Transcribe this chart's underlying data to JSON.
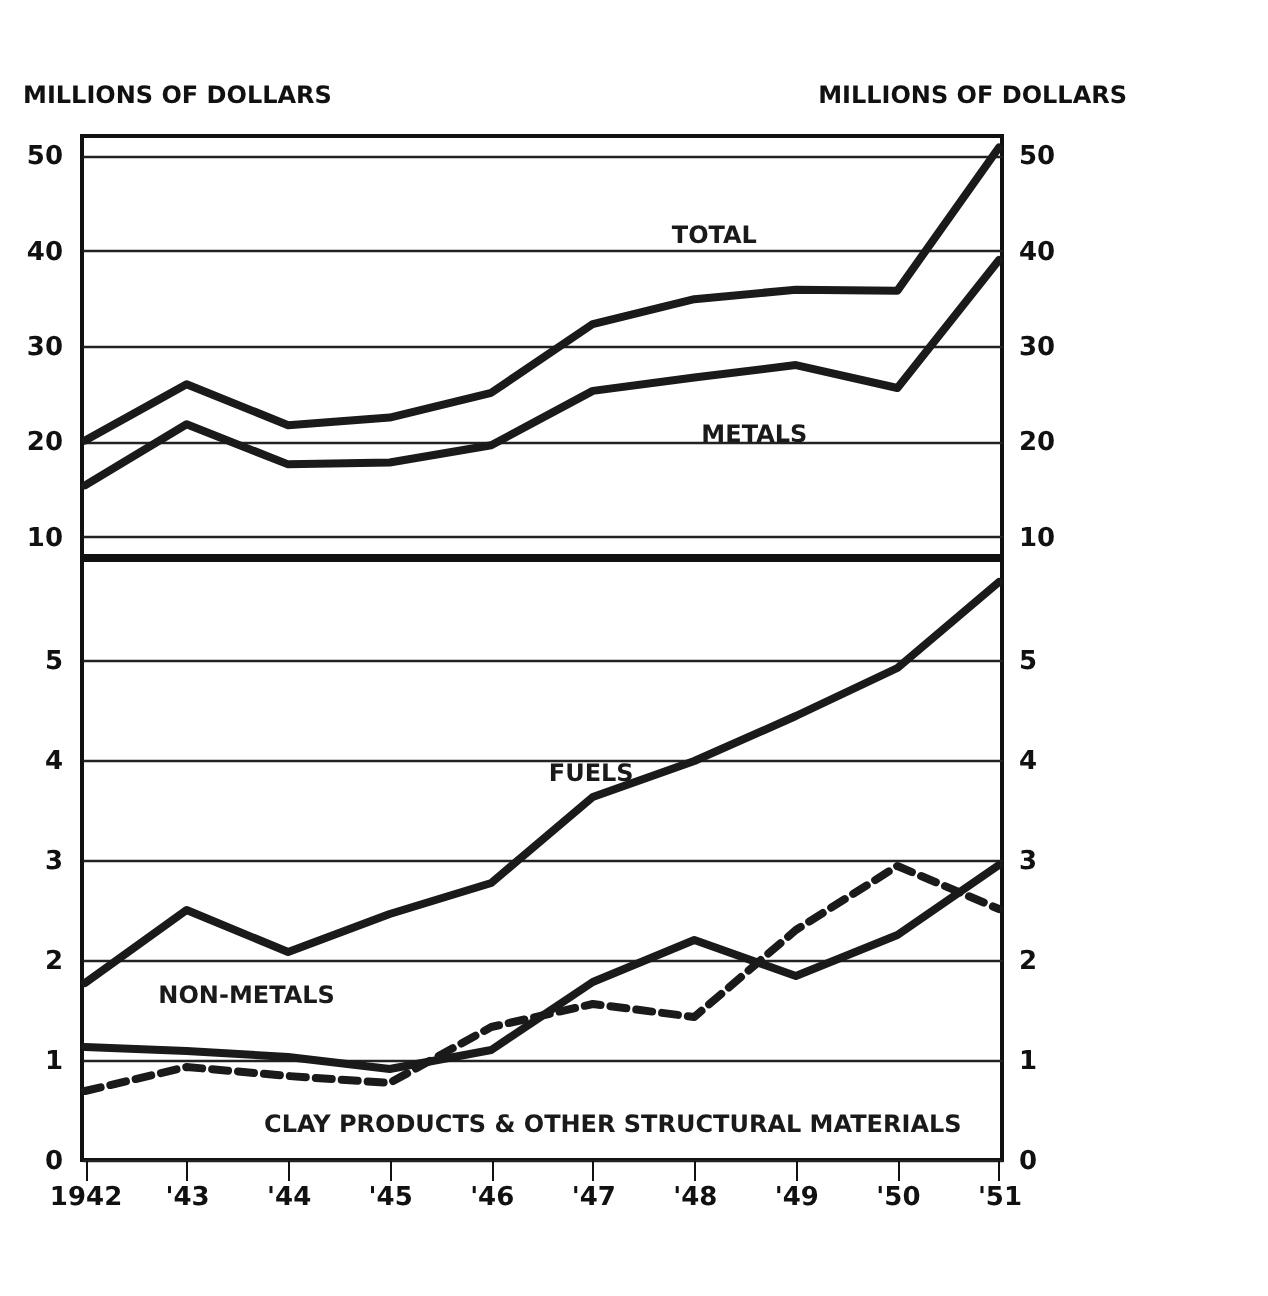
{
  "chart_data": [
    {
      "type": "line",
      "categories": [
        "1942",
        "'43",
        "'44",
        "'45",
        "'46",
        "'47",
        "'48",
        "'49",
        "'50",
        "'51"
      ],
      "ylabel": "MILLIONS OF DOLLARS",
      "y2label": "MILLIONS OF DOLLARS",
      "ylim": [
        8,
        52
      ],
      "yticks": [
        10,
        20,
        30,
        40,
        50
      ],
      "y2lim": [
        8,
        52
      ],
      "y2ticks": [
        10,
        20,
        30,
        40,
        50
      ],
      "grid": "y",
      "legend": false,
      "tick_labels": "y",
      "series": [
        {
          "name": "TOTAL",
          "color": "#1a1a1a",
          "values": [
            20.1,
            26.0,
            21.7,
            22.5,
            25.1,
            32.3,
            34.9,
            35.9,
            35.8,
            50.8
          ]
        },
        {
          "name": "METALS",
          "color": "#1a1a1a",
          "values": [
            15.4,
            21.8,
            17.6,
            17.8,
            19.6,
            25.3,
            26.7,
            28.0,
            25.6,
            39.0
          ]
        }
      ]
    },
    {
      "type": "line",
      "categories": [
        "1942",
        "'43",
        "'44",
        "'45",
        "'46",
        "'47",
        "'48",
        "'49",
        "'50",
        "'51"
      ],
      "ylim": [
        0,
        6
      ],
      "yticks": [
        0,
        1,
        2,
        3,
        4,
        5
      ],
      "y2lim": [
        0,
        6
      ],
      "y2ticks": [
        0,
        1,
        2,
        3,
        4,
        5
      ],
      "grid": "y",
      "legend": false,
      "series": [
        {
          "name": "FUELS",
          "color": "#1a1a1a",
          "values": [
            1.77,
            2.5,
            2.08,
            2.46,
            2.77,
            3.63,
            3.99,
            4.44,
            4.92,
            5.78
          ]
        },
        {
          "name": "NON-METALS",
          "color": "#1a1a1a",
          "values": [
            1.13,
            1.09,
            1.03,
            0.91,
            1.1,
            1.78,
            2.2,
            1.84,
            2.25,
            2.95
          ]
        },
        {
          "name": "CLAY PRODUCTS & OTHER STRUCTURAL MATERIALS",
          "color": "#1a1a1a",
          "line_style": "dashed",
          "values": [
            0.69,
            0.93,
            0.84,
            0.77,
            1.33,
            1.56,
            1.43,
            2.3,
            2.94,
            2.51
          ]
        }
      ]
    }
  ]
}
